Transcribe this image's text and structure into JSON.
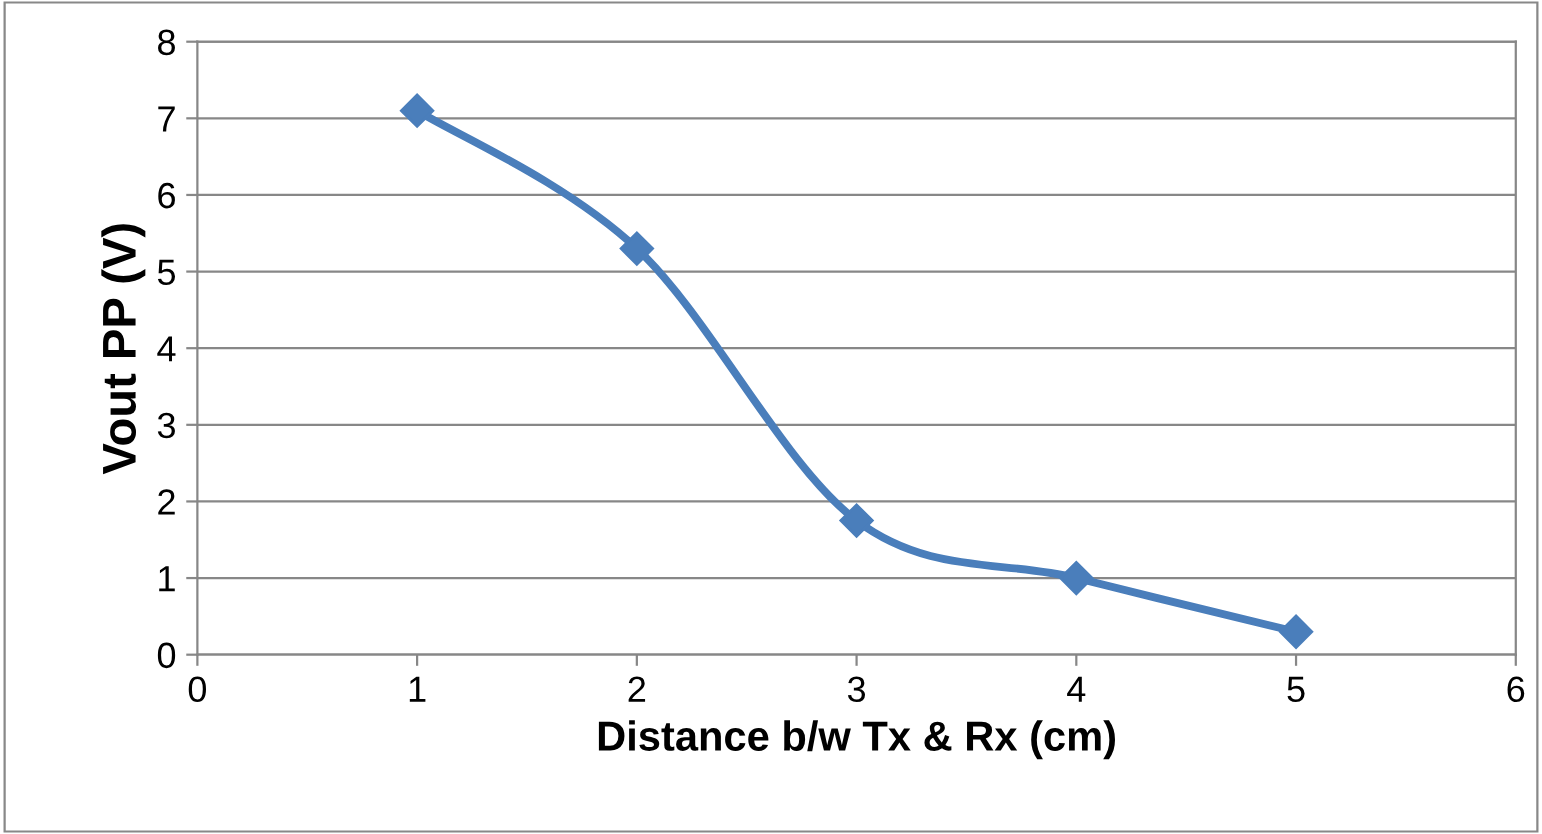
{
  "chart_data": {
    "type": "line",
    "xlabel": "Distance b/w Tx & Rx (cm)",
    "ylabel": "Vout PP (V)",
    "x": [
      1,
      2,
      3,
      4,
      5
    ],
    "series": [
      {
        "color": "#4a7ebb",
        "values": [
          7.1,
          5.3,
          1.75,
          1.0,
          0.3
        ]
      }
    ],
    "xlim": [
      0,
      6
    ],
    "xticks": [
      0,
      1,
      2,
      3,
      4,
      5,
      6
    ],
    "ylim": [
      0,
      8
    ],
    "yticks": [
      0,
      1,
      2,
      3,
      4,
      5,
      6,
      7,
      8
    ],
    "grid": "y",
    "marker": "diamond",
    "line_style": "solid",
    "legend": false
  }
}
